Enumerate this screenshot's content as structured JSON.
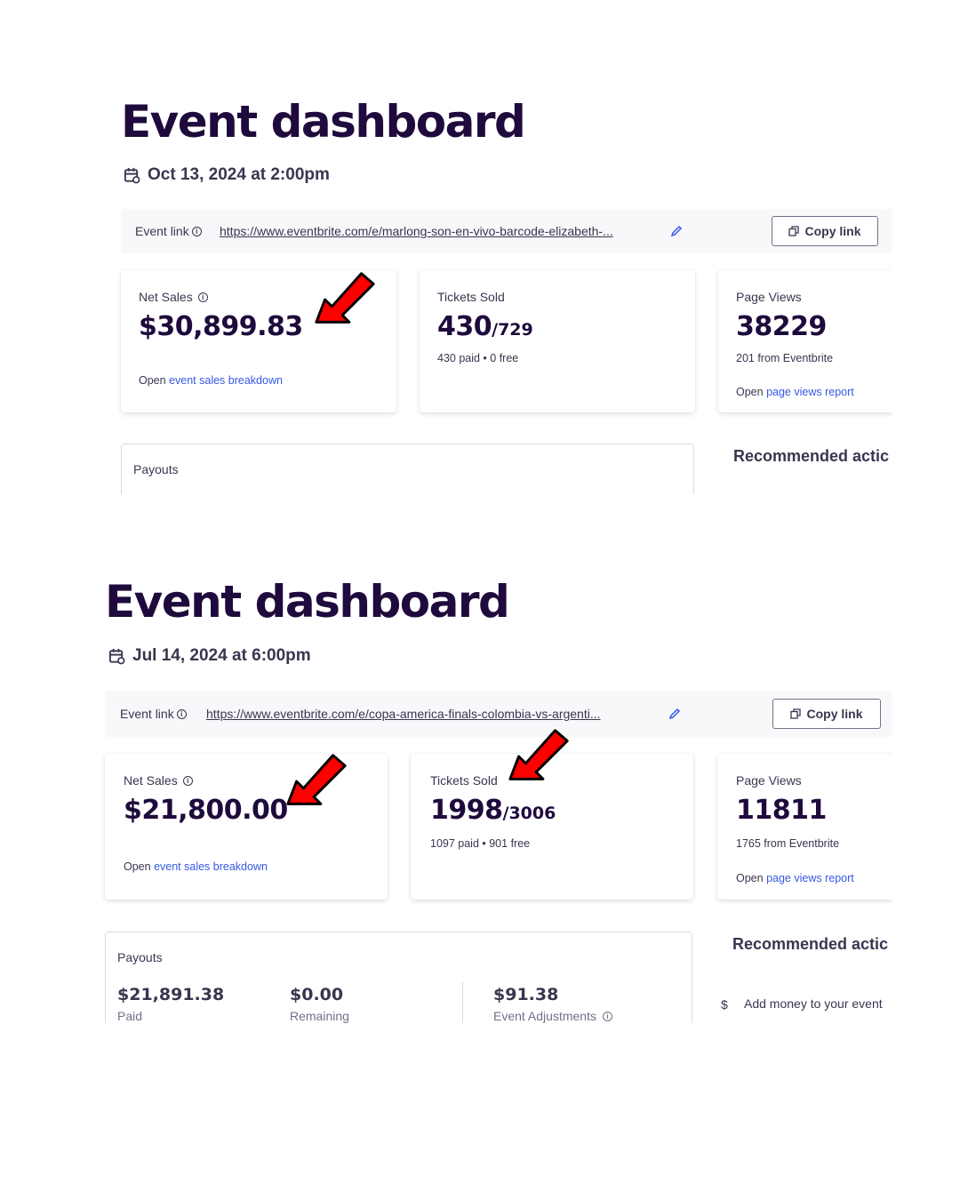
{
  "dashboards": [
    {
      "title": "Event dashboard",
      "date": "Oct 13, 2024 at 2:00pm",
      "event_link_label": "Event link",
      "event_link_url": "https://www.eventbrite.com/e/marlong-son-en-vivo-barcode-elizabeth-...",
      "copy_link_label": "Copy link",
      "net_sales": {
        "label": "Net Sales",
        "value": "$30,899.83",
        "open_prefix": "Open",
        "open_link": "event sales breakdown"
      },
      "tickets_sold": {
        "label": "Tickets Sold",
        "sold": "430",
        "total": "/729",
        "detail": "430 paid • 0 free"
      },
      "page_views": {
        "label": "Page Views",
        "value": "38229",
        "detail": "201 from Eventbrite",
        "open_prefix": "Open",
        "open_link": "page views report"
      },
      "payouts_label": "Payouts",
      "recommended_label": "Recommended actic"
    },
    {
      "title": "Event dashboard",
      "date": "Jul 14, 2024 at 6:00pm",
      "event_link_label": "Event link",
      "event_link_url": "https://www.eventbrite.com/e/copa-america-finals-colombia-vs-argenti...",
      "copy_link_label": "Copy link",
      "net_sales": {
        "label": "Net Sales",
        "value": "$21,800.00",
        "open_prefix": "Open",
        "open_link": "event sales breakdown"
      },
      "tickets_sold": {
        "label": "Tickets Sold",
        "sold": "1998",
        "total": "/3006",
        "detail": "1097 paid • 901 free"
      },
      "page_views": {
        "label": "Page Views",
        "value": "11811",
        "detail": "1765 from Eventbrite",
        "open_prefix": "Open",
        "open_link": "page views report"
      },
      "payouts_label": "Payouts",
      "payouts": [
        {
          "amount": "$21,891.38",
          "label": "Paid"
        },
        {
          "amount": "$0.00",
          "label": "Remaining"
        },
        {
          "amount": "$91.38",
          "label": "Event Adjustments"
        }
      ],
      "recommended_label": "Recommended actic",
      "recommended_item": "Add money to your event",
      "recommended_icon": "dollar-icon"
    }
  ],
  "colors": {
    "title": "#1e0a3c",
    "link_blue": "#3659e3",
    "arrow_red": "#ff0000",
    "text": "#39364f"
  }
}
